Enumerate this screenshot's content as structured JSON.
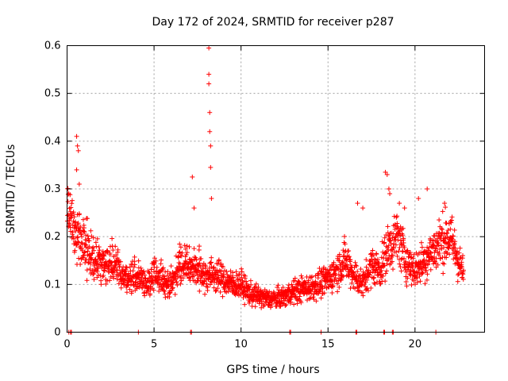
{
  "chart_data": {
    "type": "scatter",
    "title": "Day 172 of 2024, SRMTID for receiver p287",
    "xlabel": "GPS time / hours",
    "ylabel": "SRMTID / TECUs",
    "xlim": [
      0,
      24
    ],
    "ylim": [
      0,
      0.6
    ],
    "xticks": [
      0,
      5,
      10,
      15,
      20
    ],
    "xtick_labels": [
      "0",
      "5",
      "10",
      "15",
      "20"
    ],
    "yticks": [
      0,
      0.1,
      0.2,
      0.3,
      0.4,
      0.5,
      0.6
    ],
    "ytick_labels": [
      "0",
      "0.1",
      "0.2",
      "0.3",
      "0.4",
      "0.5",
      "0.6"
    ],
    "grid": true,
    "marker": "+",
    "series_color": "#ff0000",
    "trend": [
      [
        0.0,
        0.27
      ],
      [
        0.5,
        0.21
      ],
      [
        1.0,
        0.19
      ],
      [
        1.5,
        0.15
      ],
      [
        2.0,
        0.14
      ],
      [
        2.5,
        0.15
      ],
      [
        3.0,
        0.13
      ],
      [
        3.5,
        0.11
      ],
      [
        4.0,
        0.12
      ],
      [
        4.5,
        0.1
      ],
      [
        5.0,
        0.12
      ],
      [
        5.5,
        0.11
      ],
      [
        6.0,
        0.1
      ],
      [
        6.5,
        0.15
      ],
      [
        7.0,
        0.14
      ],
      [
        7.5,
        0.13
      ],
      [
        8.0,
        0.12
      ],
      [
        8.5,
        0.12
      ],
      [
        9.0,
        0.11
      ],
      [
        9.5,
        0.1
      ],
      [
        10.0,
        0.1
      ],
      [
        10.5,
        0.08
      ],
      [
        11.0,
        0.075
      ],
      [
        11.5,
        0.07
      ],
      [
        12.0,
        0.07
      ],
      [
        12.5,
        0.075
      ],
      [
        13.0,
        0.085
      ],
      [
        13.5,
        0.09
      ],
      [
        14.0,
        0.095
      ],
      [
        14.5,
        0.1
      ],
      [
        15.0,
        0.11
      ],
      [
        15.5,
        0.13
      ],
      [
        16.0,
        0.15
      ],
      [
        16.5,
        0.12
      ],
      [
        17.0,
        0.1
      ],
      [
        17.5,
        0.14
      ],
      [
        18.0,
        0.13
      ],
      [
        18.5,
        0.18
      ],
      [
        19.0,
        0.2
      ],
      [
        19.5,
        0.15
      ],
      [
        20.0,
        0.13
      ],
      [
        20.5,
        0.15
      ],
      [
        21.0,
        0.17
      ],
      [
        21.5,
        0.19
      ],
      [
        22.0,
        0.2
      ],
      [
        22.5,
        0.15
      ],
      [
        22.8,
        0.12
      ]
    ],
    "spikes": [
      [
        0.05,
        0.3
      ],
      [
        0.1,
        0.29
      ],
      [
        0.55,
        0.41
      ],
      [
        0.6,
        0.39
      ],
      [
        0.65,
        0.38
      ],
      [
        0.55,
        0.34
      ],
      [
        0.7,
        0.31
      ],
      [
        7.2,
        0.325
      ],
      [
        8.15,
        0.595
      ],
      [
        8.15,
        0.54
      ],
      [
        8.15,
        0.52
      ],
      [
        8.2,
        0.46
      ],
      [
        8.2,
        0.42
      ],
      [
        8.25,
        0.39
      ],
      [
        8.25,
        0.345
      ],
      [
        8.3,
        0.28
      ],
      [
        7.3,
        0.26
      ],
      [
        18.3,
        0.335
      ],
      [
        18.4,
        0.33
      ],
      [
        18.5,
        0.3
      ],
      [
        18.55,
        0.29
      ],
      [
        20.2,
        0.28
      ],
      [
        20.7,
        0.3
      ],
      [
        21.7,
        0.27
      ],
      [
        16.7,
        0.27
      ],
      [
        17.0,
        0.26
      ],
      [
        19.1,
        0.27
      ],
      [
        19.4,
        0.26
      ]
    ],
    "zero_points": [
      0.1,
      0.2,
      0.25,
      4.1,
      7.1,
      7.15,
      12.8,
      12.85,
      14.6,
      16.6,
      16.65,
      18.2,
      18.25,
      18.7,
      18.75,
      21.2
    ]
  }
}
